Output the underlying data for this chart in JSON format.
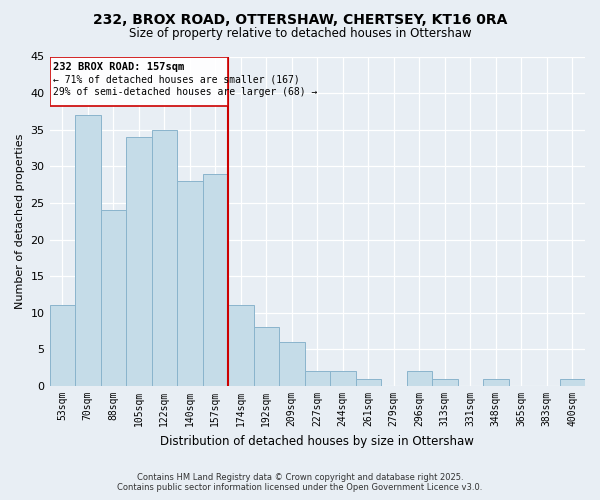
{
  "title1": "232, BROX ROAD, OTTERSHAW, CHERTSEY, KT16 0RA",
  "title2": "Size of property relative to detached houses in Ottershaw",
  "xlabel": "Distribution of detached houses by size in Ottershaw",
  "ylabel": "Number of detached properties",
  "bar_labels": [
    "53sqm",
    "70sqm",
    "88sqm",
    "105sqm",
    "122sqm",
    "140sqm",
    "157sqm",
    "174sqm",
    "192sqm",
    "209sqm",
    "227sqm",
    "244sqm",
    "261sqm",
    "279sqm",
    "296sqm",
    "313sqm",
    "331sqm",
    "348sqm",
    "365sqm",
    "383sqm",
    "400sqm"
  ],
  "bar_values": [
    11,
    37,
    24,
    34,
    35,
    28,
    29,
    11,
    8,
    6,
    2,
    2,
    1,
    0,
    2,
    1,
    0,
    1,
    0,
    0,
    1
  ],
  "highlight_index": 6,
  "bar_color": "#c5dce8",
  "bar_edge_color": "#8ab4cc",
  "highlight_line_color": "#cc0000",
  "background_color": "#e8eef4",
  "grid_color": "#ffffff",
  "ylim": [
    0,
    45
  ],
  "yticks": [
    0,
    5,
    10,
    15,
    20,
    25,
    30,
    35,
    40,
    45
  ],
  "annotation_title": "232 BROX ROAD: 157sqm",
  "annotation_line1": "← 71% of detached houses are smaller (167)",
  "annotation_line2": "29% of semi-detached houses are larger (68) →",
  "footer1": "Contains HM Land Registry data © Crown copyright and database right 2025.",
  "footer2": "Contains public sector information licensed under the Open Government Licence v3.0."
}
